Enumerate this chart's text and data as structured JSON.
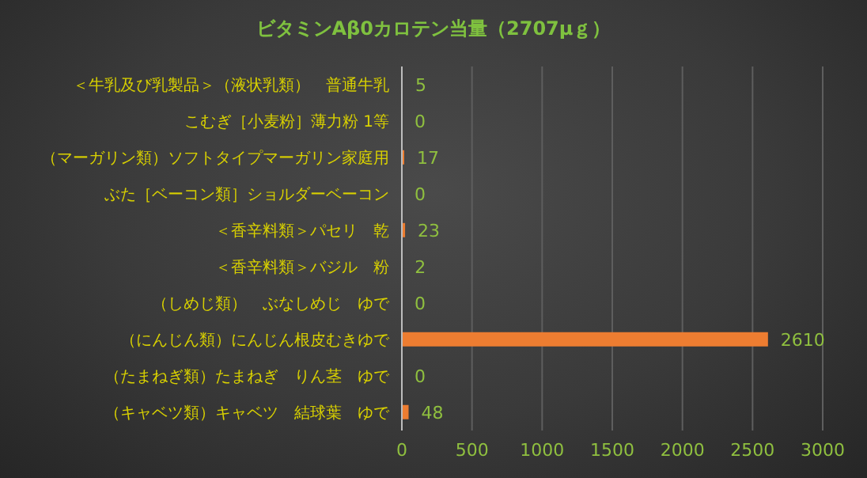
{
  "chart_data": {
    "type": "bar",
    "orientation": "horizontal",
    "title": "ビタミンAβ0カロテン当量（2707μｇ）",
    "categories": [
      "＜牛乳及び乳製品＞（液状乳類）　普通牛乳",
      "こむぎ［小麦粉］薄力粉 1等",
      "（マーガリン類）ソフトタイプマーガリン家庭用",
      "ぶた［ベーコン類］ショルダーベーコン",
      "＜香辛料類＞パセリ　乾",
      "＜香辛料類＞バジル　粉",
      "（しめじ類）　ぶなしめじ　ゆで",
      "（にんじん類）にんじん根皮むきゆで",
      "（たまねぎ類）たまねぎ　りん茎　ゆで",
      "（キャベツ類）キャベツ　結球葉　ゆで"
    ],
    "values": [
      5,
      0,
      17,
      0,
      23,
      2,
      0,
      2610,
      0,
      48
    ],
    "color": "#ed7d31",
    "xlim": [
      0,
      3000
    ],
    "xticks": [
      0,
      500,
      1000,
      1500,
      2000,
      2500,
      3000
    ],
    "grid": "x",
    "data_labels": true,
    "legend": false
  }
}
